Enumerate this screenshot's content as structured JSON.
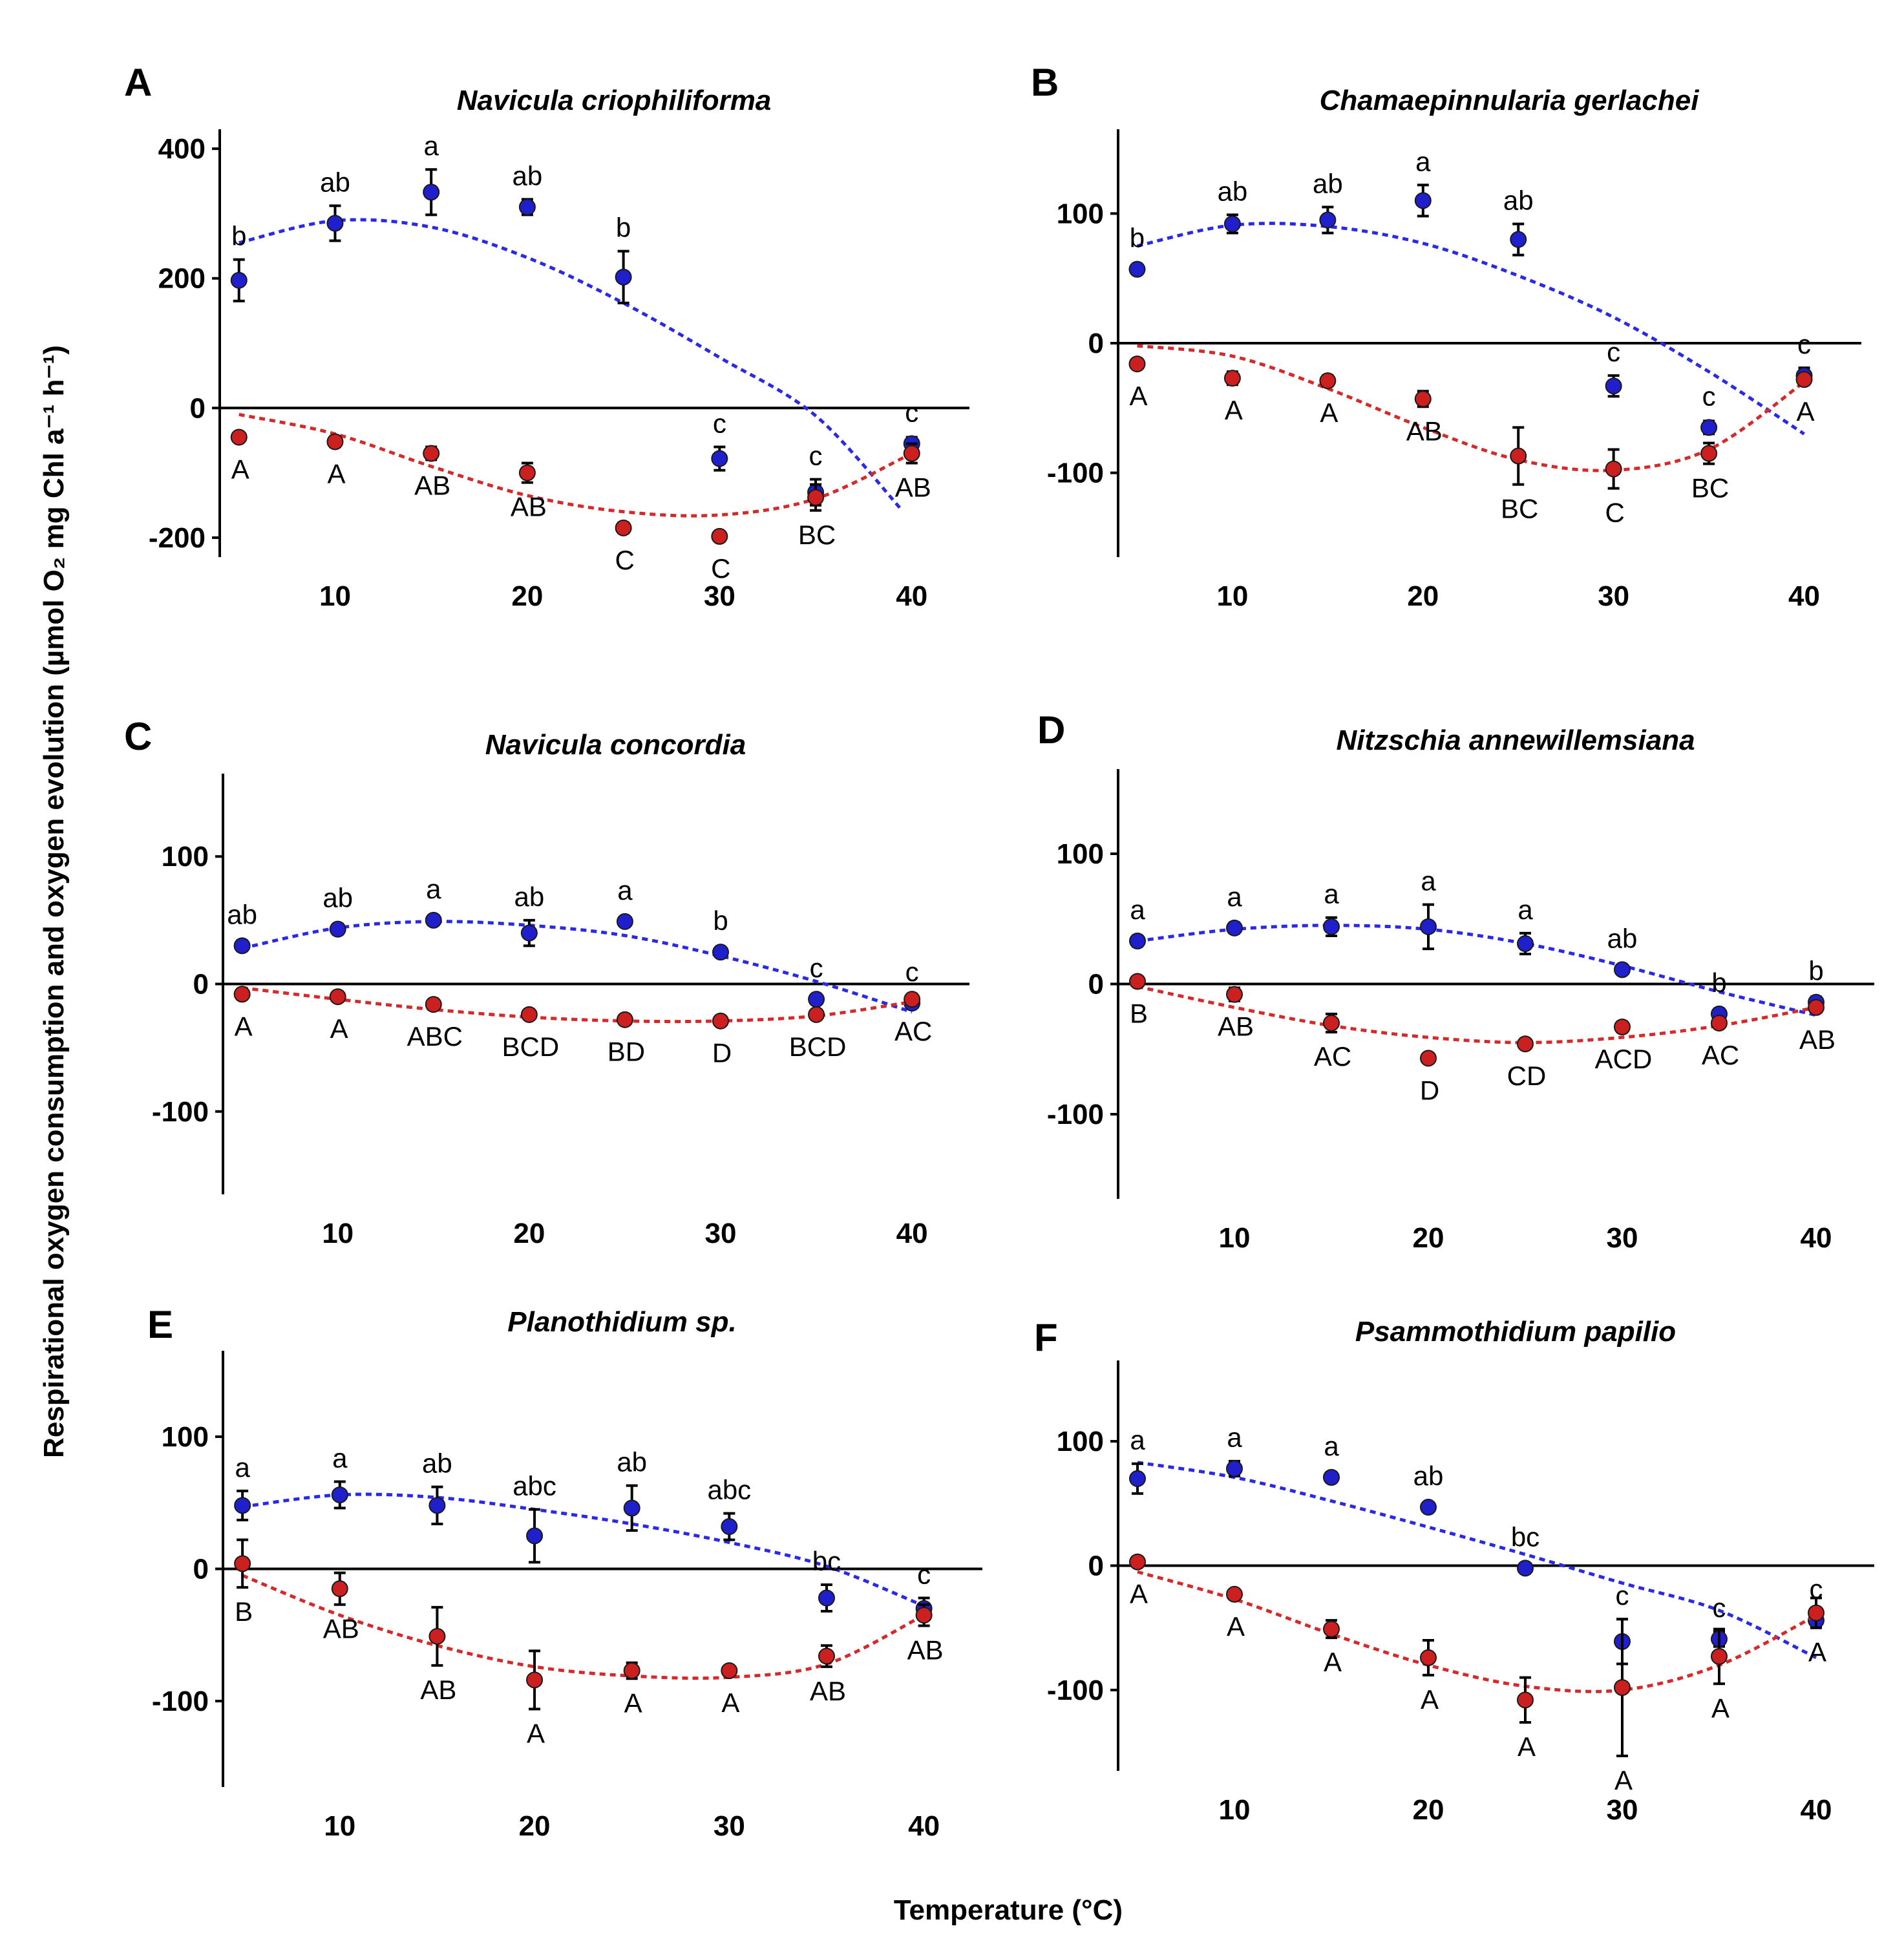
{
  "figure": {
    "xlabel": "Temperature (°C)",
    "ylabel": "Respirational oxygen consumption and oxygen evolution (µmol O₂ mg Chl a⁻¹ h⁻¹)",
    "colors": {
      "evolution": "#1f1fcc",
      "consumption": "#cc1f1f",
      "fit_evolution": "#2a2ae6",
      "fit_consumption": "#d42a2a",
      "axis": "#000000"
    }
  },
  "chart_data": [
    {
      "panel": "A",
      "title": "Navicula criophiliforma",
      "type": "scatter",
      "x": [
        5,
        10,
        15,
        20,
        25,
        30,
        35,
        40
      ],
      "ylim": [
        -230,
        430
      ],
      "xlim": [
        4,
        43
      ],
      "yticks": [
        400,
        200,
        0,
        -200
      ],
      "xticks": [
        10,
        20,
        30,
        40
      ],
      "series": [
        {
          "name": "oxygen evolution",
          "values": [
            197,
            285,
            333,
            310,
            202,
            -78,
            -130,
            -55
          ],
          "errors": [
            32,
            27,
            35,
            12,
            40,
            18,
            20,
            10
          ],
          "letters": [
            "b",
            "ab",
            "a",
            "ab",
            "b",
            "c",
            "c",
            "c"
          ],
          "fit": [
            255,
            289,
            279,
            232,
            162,
            78,
            -12,
            -158
          ],
          "fit_x": [
            5,
            10,
            15,
            20,
            25,
            30,
            35,
            39.5
          ]
        },
        {
          "name": "respiration",
          "values": [
            -45,
            -52,
            -70,
            -100,
            -185,
            -198,
            -138,
            -70
          ],
          "errors": [
            5,
            8,
            10,
            15,
            8,
            6,
            20,
            15
          ],
          "letters": [
            "A",
            "A",
            "AB",
            "AB",
            "C",
            "C",
            "BC",
            "AB"
          ],
          "fit": [
            -10,
            -40,
            -90,
            -135,
            -160,
            -165,
            -140,
            -70
          ],
          "fit_x": [
            5,
            10,
            15,
            20,
            25,
            30,
            35,
            40
          ]
        }
      ]
    },
    {
      "panel": "B",
      "title": "Chamaepinnularia gerlachei",
      "type": "scatter",
      "x": [
        5,
        10,
        15,
        20,
        25,
        30,
        35,
        40
      ],
      "ylim": [
        -165,
        165
      ],
      "xlim": [
        4,
        43
      ],
      "yticks": [
        100,
        0,
        -100
      ],
      "xticks": [
        10,
        20,
        30,
        40
      ],
      "series": [
        {
          "name": "oxygen evolution",
          "values": [
            57,
            92,
            95,
            110,
            80,
            -33,
            -65,
            -25
          ],
          "errors": [
            3,
            7,
            10,
            12,
            12,
            8,
            5,
            6
          ],
          "letters": [
            "b",
            "ab",
            "ab",
            "a",
            "ab",
            "c",
            "c",
            "c"
          ],
          "fit": [
            75,
            91,
            90,
            77,
            52,
            20,
            -22,
            -70
          ],
          "fit_x": [
            5,
            10,
            15,
            20,
            25,
            30,
            35,
            40
          ]
        },
        {
          "name": "respiration",
          "values": [
            -16,
            -27,
            -29,
            -43,
            -87,
            -97,
            -85,
            -28
          ],
          "errors": [
            3,
            5,
            4,
            6,
            22,
            15,
            8,
            4
          ],
          "letters": [
            "A",
            "A",
            "A",
            "AB",
            "BC",
            "C",
            "BC",
            "A"
          ],
          "fit": [
            -2,
            -10,
            -35,
            -65,
            -90,
            -98,
            -82,
            -30
          ],
          "fit_x": [
            5,
            10,
            15,
            20,
            25,
            30,
            35,
            40
          ]
        }
      ]
    },
    {
      "panel": "C",
      "title": "Navicula concordia",
      "type": "scatter",
      "x": [
        5,
        10,
        15,
        20,
        25,
        30,
        35,
        40
      ],
      "ylim": [
        -165,
        165
      ],
      "xlim": [
        4,
        43
      ],
      "yticks": [
        100,
        0,
        -100
      ],
      "xticks": [
        10,
        20,
        30,
        40
      ],
      "series": [
        {
          "name": "oxygen evolution",
          "values": [
            30,
            43,
            50,
            40,
            49,
            25,
            -12,
            -15
          ],
          "errors": [
            4,
            4,
            3,
            10,
            3,
            3,
            3,
            3
          ],
          "letters": [
            "ab",
            "ab",
            "a",
            "ab",
            "a",
            "b",
            "c",
            "c"
          ],
          "fit": [
            28,
            44,
            49,
            46,
            38,
            22,
            2,
            -22
          ],
          "fit_x": [
            5,
            10,
            15,
            20,
            25,
            30,
            35,
            40
          ]
        },
        {
          "name": "respiration",
          "values": [
            -8,
            -10,
            -16,
            -24,
            -28,
            -29,
            -24,
            -12
          ],
          "errors": [
            2,
            2,
            2,
            3,
            2,
            3,
            3,
            2
          ],
          "letters": [
            "A",
            "A",
            "ABC",
            "BCD",
            "BD",
            "D",
            "BCD",
            "AC"
          ],
          "fit": [
            -3,
            -12,
            -20,
            -26,
            -29,
            -29,
            -25,
            -14
          ],
          "fit_x": [
            5,
            10,
            15,
            20,
            25,
            30,
            35,
            40
          ]
        }
      ]
    },
    {
      "panel": "D",
      "title": "Nitzschia annewillemsiana",
      "type": "scatter",
      "x": [
        5,
        10,
        15,
        20,
        25,
        30,
        35,
        40
      ],
      "ylim": [
        -165,
        165
      ],
      "xlim": [
        4,
        43
      ],
      "yticks": [
        100,
        0,
        -100
      ],
      "xticks": [
        10,
        20,
        30,
        40
      ],
      "series": [
        {
          "name": "oxygen evolution",
          "values": [
            33,
            43,
            44,
            44,
            31,
            11,
            -23,
            -14
          ],
          "errors": [
            4,
            4,
            7,
            17,
            8,
            3,
            4,
            4
          ],
          "letters": [
            "a",
            "a",
            "a",
            "a",
            "a",
            "ab",
            "b",
            "b"
          ],
          "fit": [
            33,
            42,
            45,
            42,
            31,
            14,
            -6,
            -24
          ],
          "fit_x": [
            5,
            10,
            15,
            20,
            25,
            30,
            35,
            40
          ]
        },
        {
          "name": "respiration",
          "values": [
            2,
            -8,
            -30,
            -57,
            -46,
            -33,
            -30,
            -18
          ],
          "errors": [
            3,
            5,
            7,
            3,
            3,
            4,
            3,
            3
          ],
          "letters": [
            "B",
            "AB",
            "AC",
            "D",
            "CD",
            "ACD",
            "AC",
            "AB"
          ],
          "fit": [
            -2,
            -18,
            -32,
            -41,
            -45,
            -41,
            -32,
            -18
          ],
          "fit_x": [
            5,
            10,
            15,
            20,
            25,
            30,
            35,
            40
          ]
        }
      ]
    },
    {
      "panel": "E",
      "title": "Planothidium sp.",
      "type": "scatter",
      "x": [
        5,
        10,
        15,
        20,
        25,
        30,
        35,
        40
      ],
      "ylim": [
        -165,
        165
      ],
      "xlim": [
        4,
        43
      ],
      "yticks": [
        100,
        0,
        -100
      ],
      "xticks": [
        10,
        20,
        30,
        40
      ],
      "series": [
        {
          "name": "oxygen evolution",
          "values": [
            48,
            56,
            48,
            25,
            46,
            32,
            -22,
            -30
          ],
          "errors": [
            11,
            10,
            14,
            20,
            17,
            10,
            10,
            8
          ],
          "letters": [
            "a",
            "a",
            "ab",
            "abc",
            "ab",
            "abc",
            "bc",
            "c"
          ],
          "fit": [
            47,
            56,
            54,
            45,
            34,
            20,
            2,
            -28
          ],
          "fit_x": [
            5,
            10,
            15,
            20,
            25,
            30,
            35,
            40
          ]
        },
        {
          "name": "respiration",
          "values": [
            4,
            -15,
            -51,
            -84,
            -77,
            -77,
            -66,
            -35
          ],
          "errors": [
            18,
            12,
            22,
            22,
            6,
            3,
            8,
            8
          ],
          "letters": [
            "B",
            "AB",
            "AB",
            "A",
            "A",
            "A",
            "AB",
            "AB"
          ],
          "fit": [
            -5,
            -35,
            -58,
            -74,
            -81,
            -82,
            -72,
            -35
          ],
          "fit_x": [
            5,
            10,
            15,
            20,
            25,
            30,
            35,
            40
          ]
        }
      ]
    },
    {
      "panel": "F",
      "title": "Psammothidium papilio",
      "type": "scatter",
      "x": [
        5,
        10,
        15,
        20,
        25,
        30,
        35,
        40
      ],
      "ylim": [
        -165,
        165
      ],
      "xlim": [
        4,
        43
      ],
      "yticks": [
        100,
        0,
        -100
      ],
      "xticks": [
        10,
        20,
        30,
        40
      ],
      "series": [
        {
          "name": "oxygen evolution",
          "values": [
            70,
            78,
            71,
            47,
            -2,
            -61,
            -59,
            -44
          ],
          "errors": [
            12,
            6,
            4,
            3,
            3,
            18,
            6,
            4
          ],
          "letters": [
            "a",
            "a",
            "a",
            "ab",
            "bc",
            "c",
            "c",
            "c"
          ],
          "fit": [
            83,
            71,
            52,
            31,
            9,
            -14,
            -36,
            -74
          ],
          "fit_x": [
            5,
            10,
            15,
            20,
            25,
            30,
            35,
            40
          ]
        },
        {
          "name": "respiration",
          "values": [
            3,
            -23,
            -51,
            -74,
            -108,
            -98,
            -73,
            -38
          ],
          "errors": [
            3,
            3,
            7,
            14,
            18,
            55,
            22,
            12
          ],
          "letters": [
            "A",
            "A",
            "A",
            "A",
            "A",
            "A",
            "A",
            "A"
          ],
          "fit": [
            -5,
            -27,
            -55,
            -80,
            -97,
            -100,
            -80,
            -40
          ],
          "fit_x": [
            5,
            10,
            15,
            20,
            25,
            30,
            35,
            40
          ]
        }
      ]
    }
  ]
}
